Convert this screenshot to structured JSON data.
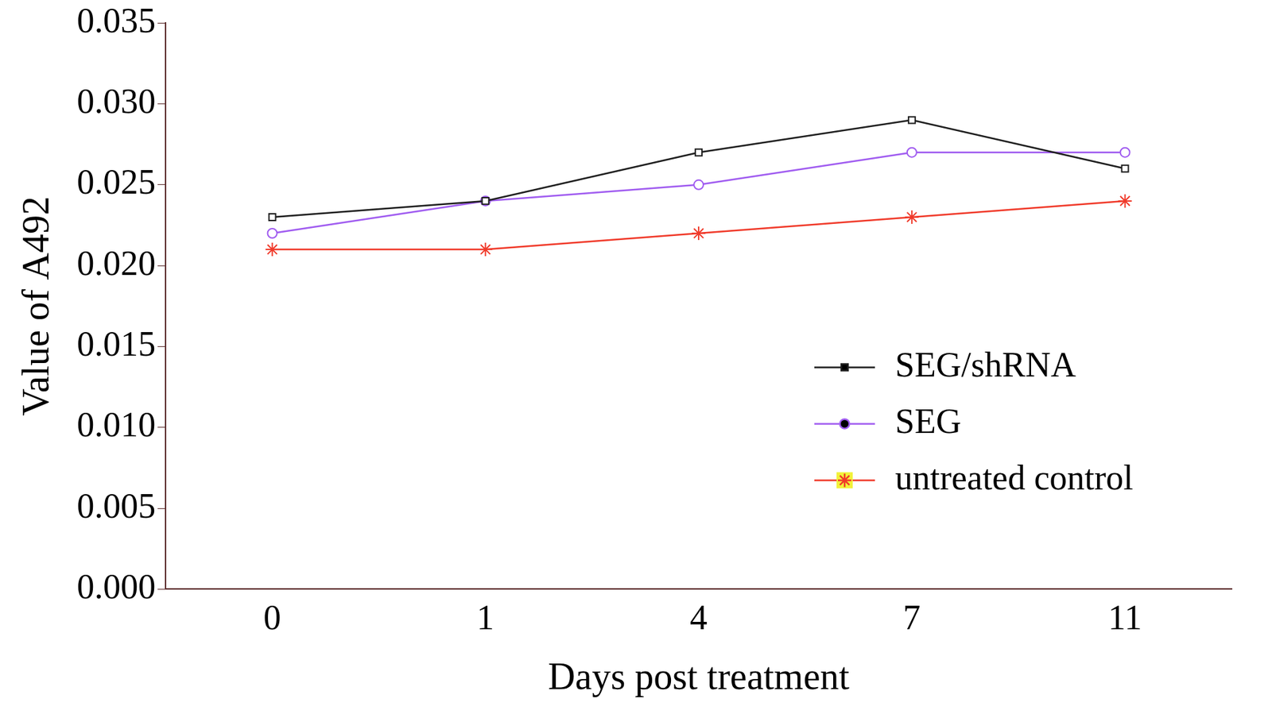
{
  "chart_data": {
    "type": "line",
    "x_label": "Days post treatment",
    "y_label": "Value of A492",
    "categories": [
      "0",
      "1",
      "4",
      "7",
      "11"
    ],
    "series": [
      {
        "name": "SEG/shRNA",
        "color": "#1f1f1f",
        "marker": "square",
        "values": [
          0.023,
          0.024,
          0.027,
          0.029,
          0.026
        ]
      },
      {
        "name": "SEG",
        "color": "#a05cf0",
        "marker": "circle",
        "values": [
          0.022,
          0.024,
          0.025,
          0.027,
          0.027
        ]
      },
      {
        "name": "untreated control",
        "color": "#f03a2a",
        "marker": "star",
        "values": [
          0.021,
          0.021,
          0.022,
          0.023,
          0.024
        ]
      }
    ],
    "ylim": [
      0,
      0.035
    ],
    "yticks": [
      {
        "value": 0,
        "label": "0.000"
      },
      {
        "value": 0.005,
        "label": "0.005"
      },
      {
        "value": 0.01,
        "label": "0.010"
      },
      {
        "value": 0.015,
        "label": "0.015"
      },
      {
        "value": 0.02,
        "label": "0.020"
      },
      {
        "value": 0.025,
        "label": "0.025"
      },
      {
        "value": 0.03,
        "label": "0.030"
      },
      {
        "value": 0.035,
        "label": "0.035"
      }
    ],
    "grid": false,
    "legend": "lower right"
  }
}
